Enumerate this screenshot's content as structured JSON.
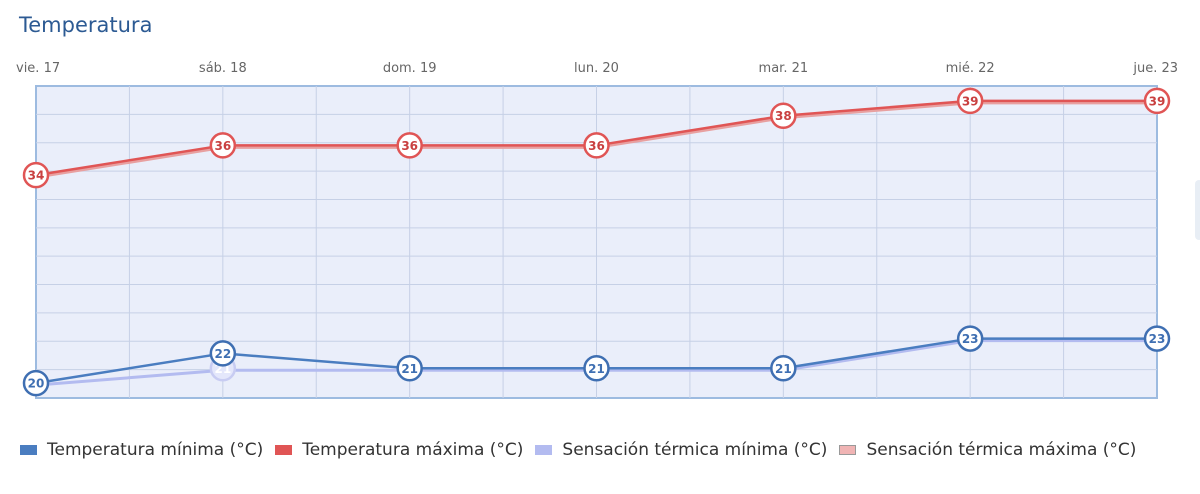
{
  "title": "Temperatura",
  "chart_data": {
    "type": "line",
    "categories": [
      "vie. 17",
      "sáb. 18",
      "dom. 19",
      "lun. 20",
      "mar. 21",
      "mié. 22",
      "jue. 23"
    ],
    "ylim": [
      19,
      40
    ],
    "grid": true,
    "legend_position": "bottom-left",
    "series": [
      {
        "name": "Temperatura mínima (°C)",
        "values": [
          20,
          22,
          21,
          21,
          21,
          23,
          23
        ],
        "color": "#4a7dc0"
      },
      {
        "name": "Temperatura máxima (°C)",
        "values": [
          34,
          36,
          36,
          36,
          38,
          39,
          39
        ],
        "color": "#e05555"
      },
      {
        "name": "Sensación térmica mínima (°C)",
        "values": [
          20,
          21,
          21,
          21,
          21,
          23,
          23
        ],
        "color": "#b3bbf0"
      },
      {
        "name": "Sensación térmica máxima (°C)",
        "values": [
          34,
          36,
          36,
          36,
          38,
          39,
          39
        ],
        "color": "#e8a0a0"
      }
    ]
  }
}
